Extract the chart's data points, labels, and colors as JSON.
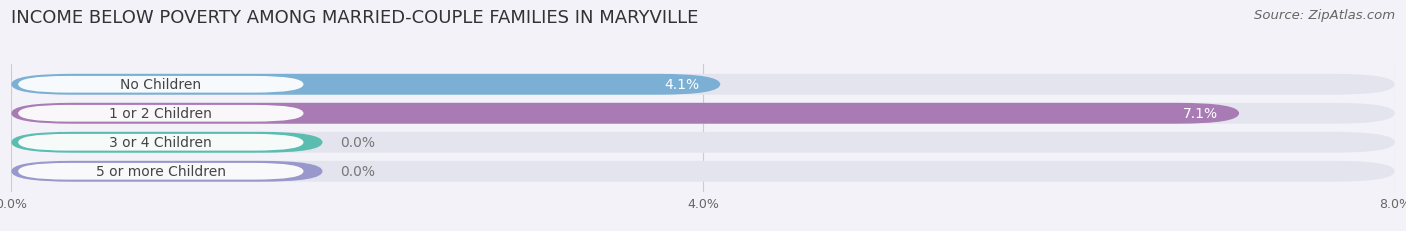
{
  "title": "INCOME BELOW POVERTY AMONG MARRIED-COUPLE FAMILIES IN MARYVILLE",
  "source": "Source: ZipAtlas.com",
  "categories": [
    "No Children",
    "1 or 2 Children",
    "3 or 4 Children",
    "5 or more Children"
  ],
  "values": [
    4.1,
    7.1,
    0.0,
    0.0
  ],
  "bar_colors": [
    "#7bafd4",
    "#a97bb5",
    "#5bbcb0",
    "#9898cc"
  ],
  "bar_bg_color": "#e4e4ee",
  "label_bg_color": "#ffffff",
  "value_inside_color": "#ffffff",
  "value_outside_color": "#777777",
  "xlim": [
    0,
    8.0
  ],
  "xticks": [
    0.0,
    4.0,
    8.0
  ],
  "xtick_labels": [
    "0.0%",
    "4.0%",
    "8.0%"
  ],
  "title_fontsize": 13,
  "source_fontsize": 9.5,
  "label_fontsize": 10,
  "value_fontsize": 10,
  "bar_height": 0.72,
  "bar_gap": 0.28,
  "bg_color": "#f2f2f8",
  "value_inside_threshold": 0.5
}
